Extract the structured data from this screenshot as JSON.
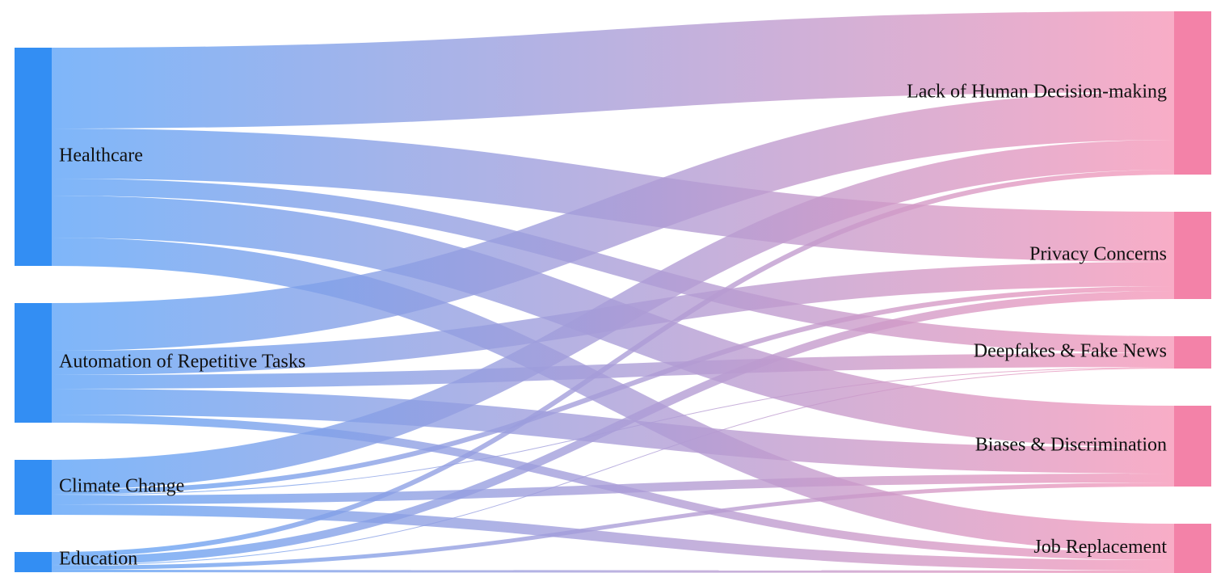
{
  "sources": [
    {
      "id": "healthcare",
      "label": "Healthcare"
    },
    {
      "id": "automation",
      "label": "Automation of Repetitive Tasks"
    },
    {
      "id": "climate",
      "label": "Climate Change"
    },
    {
      "id": "education",
      "label": "Education"
    }
  ],
  "targets": [
    {
      "id": "lack",
      "label": "Lack of Human Decision-making"
    },
    {
      "id": "privacy",
      "label": "Privacy Concerns"
    },
    {
      "id": "deepfakes",
      "label": "Deepfakes & Fake News"
    },
    {
      "id": "biases",
      "label": "Biases & Discrimination"
    },
    {
      "id": "jobs",
      "label": "Job Replacement"
    }
  ],
  "links": [
    {
      "source": "healthcare",
      "target": "lack",
      "value": 100
    },
    {
      "source": "healthcare",
      "target": "privacy",
      "value": 62
    },
    {
      "source": "healthcare",
      "target": "deepfakes",
      "value": 21
    },
    {
      "source": "healthcare",
      "target": "biases",
      "value": 52
    },
    {
      "source": "healthcare",
      "target": "jobs",
      "value": 35
    },
    {
      "source": "automation",
      "target": "lack",
      "value": 59
    },
    {
      "source": "automation",
      "target": "privacy",
      "value": 30
    },
    {
      "source": "automation",
      "target": "deepfakes",
      "value": 17
    },
    {
      "source": "automation",
      "target": "biases",
      "value": 32
    },
    {
      "source": "automation",
      "target": "jobs",
      "value": 10
    },
    {
      "source": "climate",
      "target": "lack",
      "value": 37
    },
    {
      "source": "climate",
      "target": "privacy",
      "value": 6
    },
    {
      "source": "climate",
      "target": "deepfakes",
      "value": 1
    },
    {
      "source": "climate",
      "target": "biases",
      "value": 11
    },
    {
      "source": "climate",
      "target": "jobs",
      "value": 13
    },
    {
      "source": "education",
      "target": "lack",
      "value": 6
    },
    {
      "source": "education",
      "target": "privacy",
      "value": 10
    },
    {
      "source": "education",
      "target": "deepfakes",
      "value": 1
    },
    {
      "source": "education",
      "target": "biases",
      "value": 5
    },
    {
      "source": "education",
      "target": "jobs",
      "value": 3
    }
  ],
  "colors": {
    "source_node": "#338EF3",
    "target_node": "#F382A8",
    "link_start": "#5AA2F8",
    "link_end": "#F696B7"
  }
}
